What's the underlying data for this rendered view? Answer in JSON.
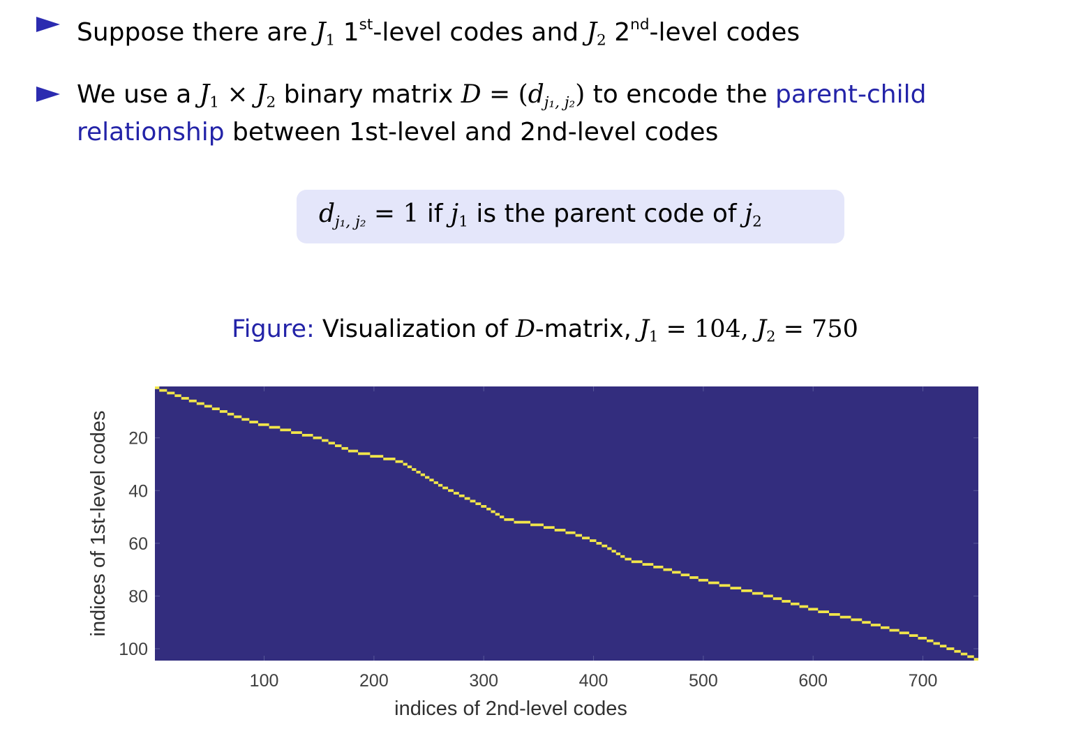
{
  "slide": {
    "bullet1": {
      "p1": "Suppose there are ",
      "J1": "J",
      "J1_sub": "1",
      "p2": " 1",
      "sup1": "st",
      "p3": "-level codes and ",
      "J2": "J",
      "J2_sub": "2",
      "p4": " 2",
      "sup2": "nd",
      "p5": "-level codes"
    },
    "bullet2": {
      "p1": "We use a ",
      "J1": "J",
      "J1_sub": "1",
      "times": " × ",
      "J2": "J",
      "J2_sub": "2",
      "p2": " binary matrix ",
      "D": "D",
      "eq": " = (",
      "d": "d",
      "d_sub": "j₁, j₂",
      "close": ")",
      "p3": " to encode the ",
      "highlight_a": "parent-child",
      "highlight_b": "relationship",
      "p4": " between 1st-level and 2nd-level codes"
    },
    "equation": {
      "d": "d",
      "d_sub": "j₁, j₂",
      "eq": " = 1 ",
      "if_text": "if ",
      "j1": "j",
      "j1_sub": "1",
      "mid": " is the parent code of ",
      "j2": "j",
      "j2_sub": "2"
    },
    "caption": {
      "label": "Figure:",
      "p1": " Visualization of ",
      "D": "D",
      "p2": "-matrix, ",
      "J1": "J",
      "J1_sub": "1",
      "v1": " = 104,  ",
      "J2": "J",
      "J2_sub": "2",
      "v2": " = 750"
    }
  },
  "colors": {
    "bullet": "#2b2bb0",
    "highlight": "#2323a8",
    "box_bg": "#e4e6fa",
    "matrix_bg": "#332d7e",
    "matrix_line": "#f2e64a"
  },
  "chart_data": {
    "type": "heatmap",
    "title": "",
    "xlabel": "indices of 2nd-level codes",
    "ylabel": "indices of 1st-level codes",
    "xlim": [
      1,
      750
    ],
    "ylim": [
      1,
      104
    ],
    "y_reversed": true,
    "xticks": [
      100,
      200,
      300,
      400,
      500,
      600,
      700
    ],
    "yticks": [
      20,
      40,
      60,
      80,
      100
    ],
    "grid": false,
    "value_colors": {
      "0": "#332d7e",
      "1": "#f2e64a"
    },
    "parent_of_child_breakpoints": {
      "x": [
        1,
        90,
        150,
        180,
        225,
        245,
        265,
        290,
        305,
        320,
        350,
        380,
        400,
        415,
        430,
        460,
        500,
        560,
        600,
        640,
        700,
        750
      ],
      "y": [
        1,
        14,
        20,
        25,
        29,
        34,
        39,
        44,
        47,
        51,
        53,
        56,
        59,
        62,
        66,
        69,
        74,
        80,
        85,
        89,
        96,
        104
      ]
    }
  }
}
